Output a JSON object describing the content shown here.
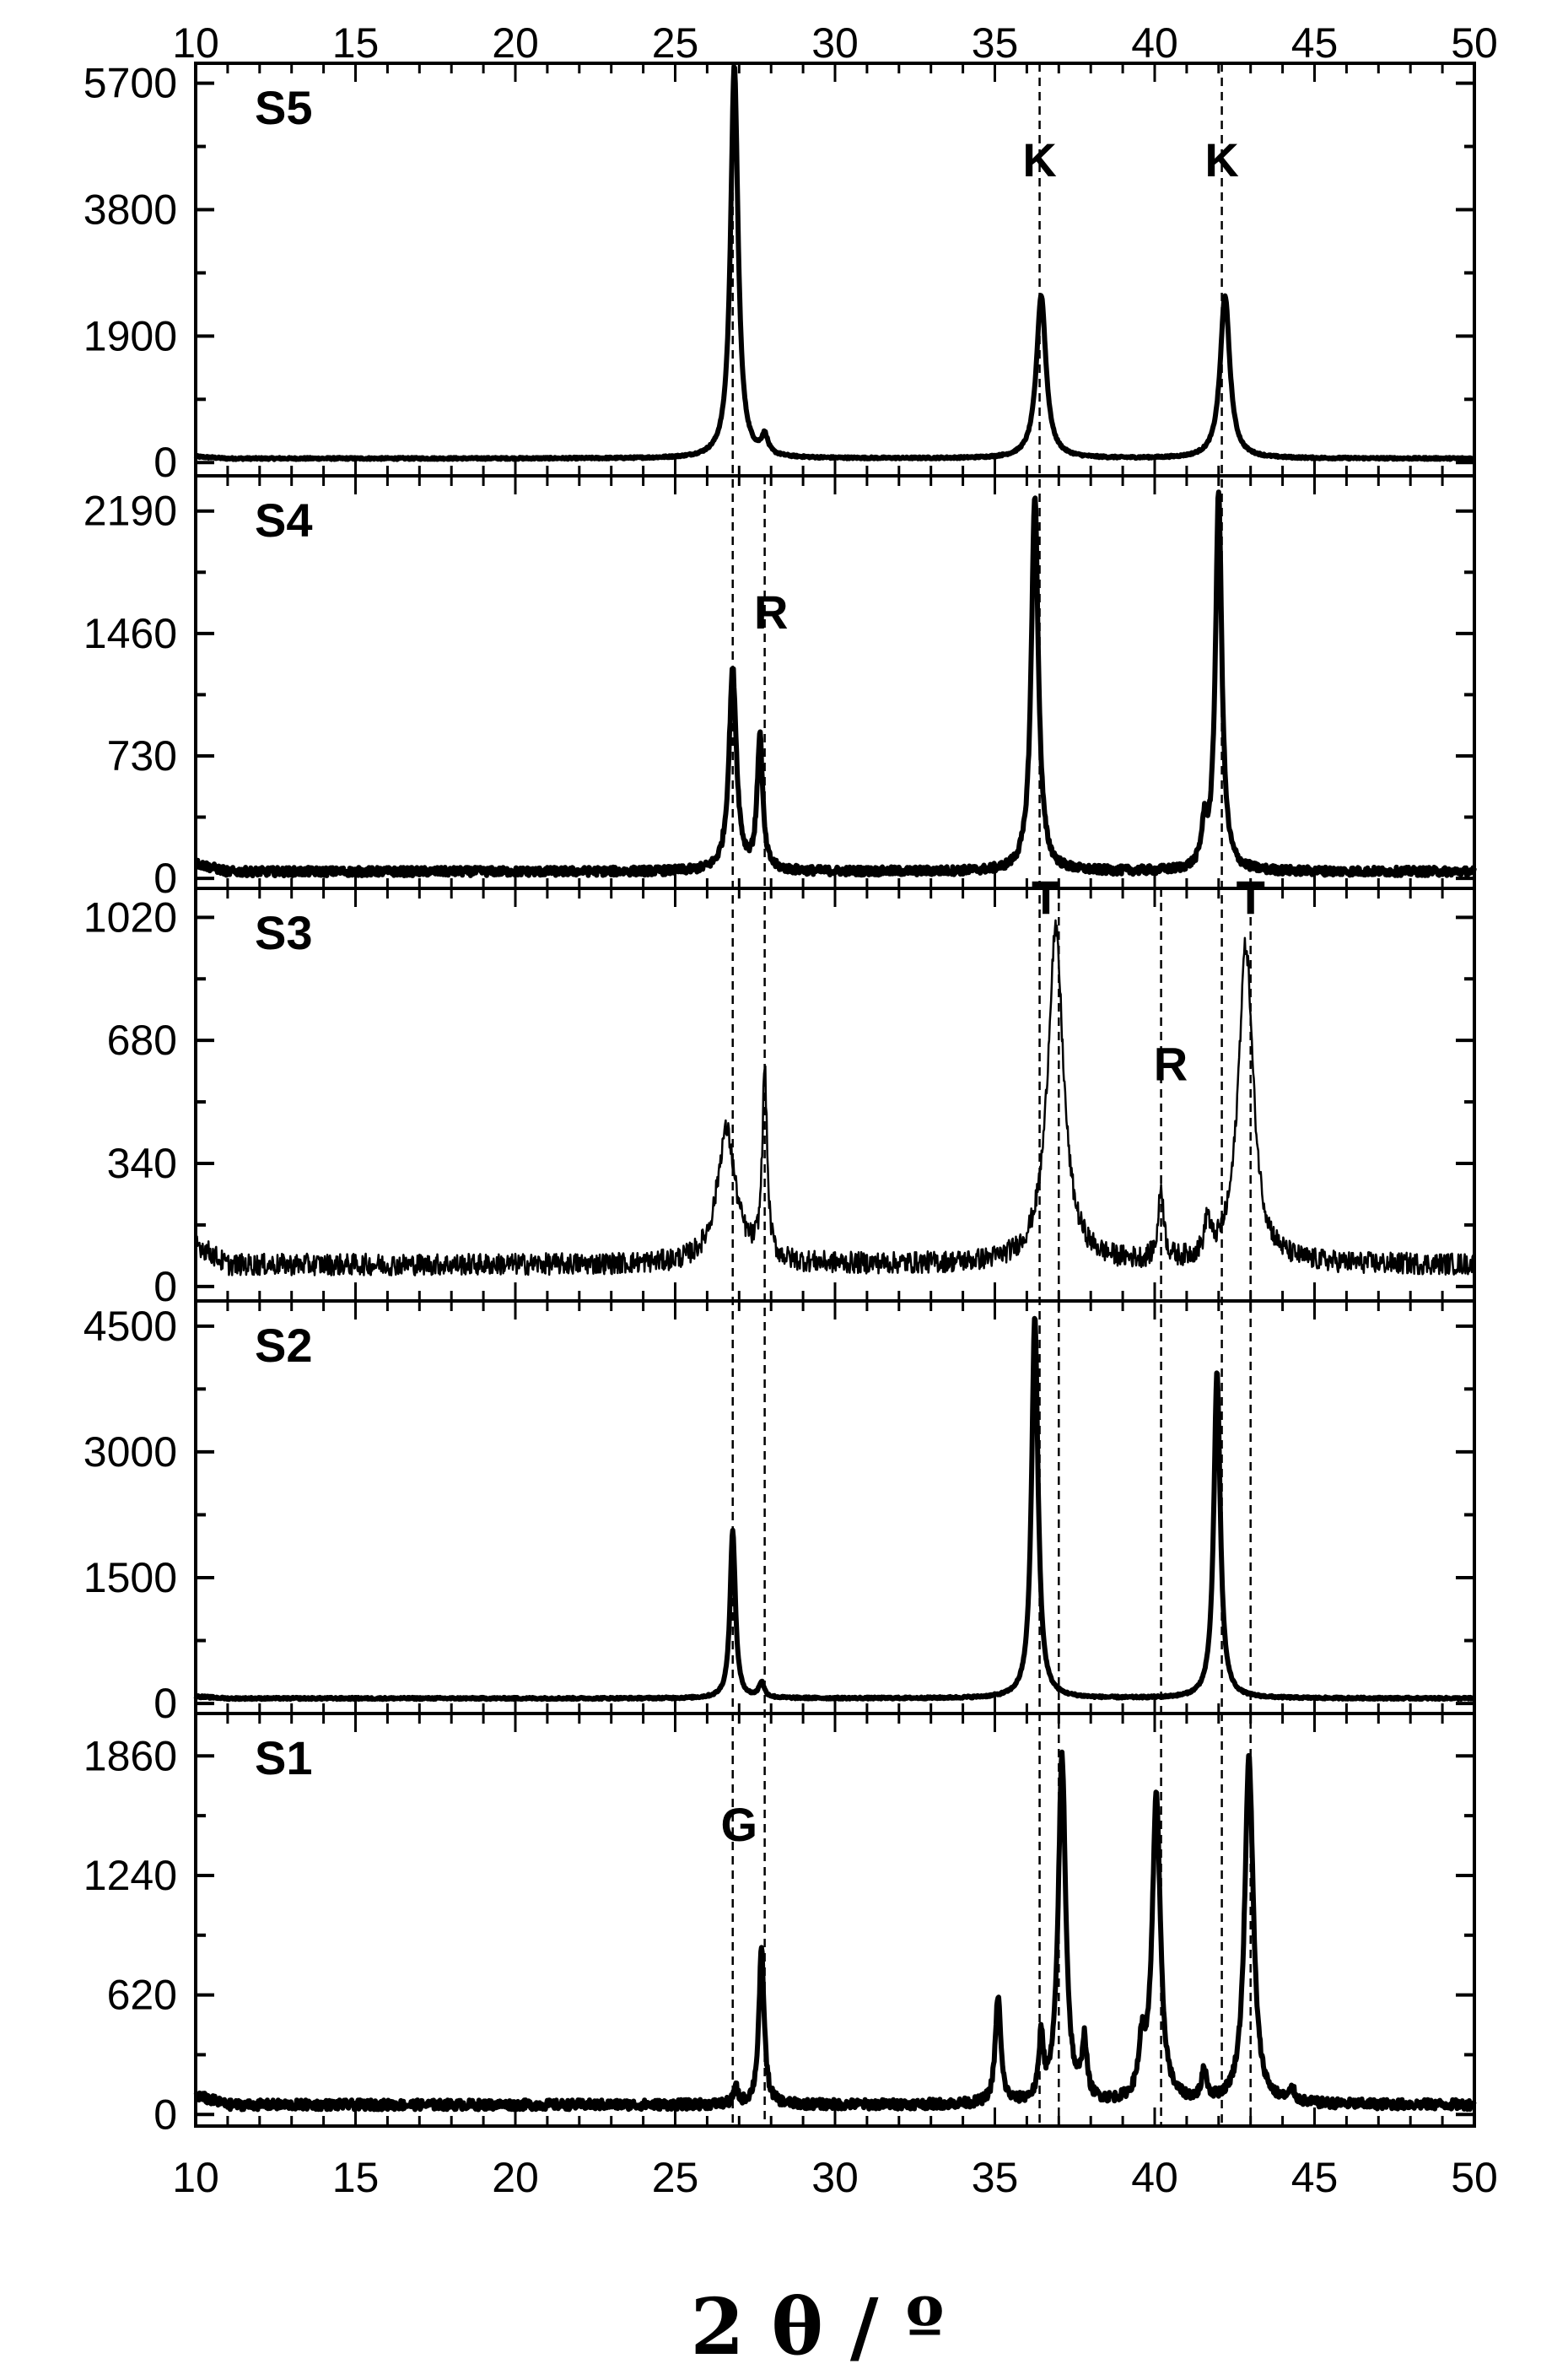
{
  "chart_data": {
    "type": "line",
    "layout": "stacked-panels",
    "xlabel": "2 θ / º",
    "xlim": [
      10,
      50
    ],
    "x_ticks": [
      10,
      15,
      20,
      25,
      30,
      35,
      40,
      45,
      50
    ],
    "grid": false,
    "legend": "none",
    "line_color": "#000000",
    "reference_lines": [
      {
        "x": 26.8,
        "panels": [
          "S5",
          "S4",
          "S3",
          "S2",
          "S1"
        ]
      },
      {
        "x": 27.8,
        "panels": [
          "S4",
          "S3",
          "S2",
          "S1"
        ]
      },
      {
        "x": 36.4,
        "panels": [
          "S5",
          "S4",
          "S3",
          "S2",
          "S1"
        ]
      },
      {
        "x": 37.0,
        "panels": [
          "S3",
          "S2",
          "S1"
        ]
      },
      {
        "x": 40.2,
        "panels": [
          "S3",
          "S2",
          "S1"
        ]
      },
      {
        "x": 42.1,
        "panels": [
          "S5",
          "S4",
          "S3",
          "S2",
          "S1"
        ]
      },
      {
        "x": 43.0,
        "panels": [
          "S3",
          "S2",
          "S1"
        ]
      }
    ],
    "panels": [
      {
        "label": "S5",
        "ylim": [
          -200,
          6000
        ],
        "y_ticks": [
          0,
          1900,
          3800,
          5700
        ],
        "baseline": 60,
        "noise": 15,
        "stroke_width": 6,
        "peaks": [
          {
            "x": 26.85,
            "y": 5900,
            "w": 0.14
          },
          {
            "x": 27.8,
            "y": 280,
            "w": 0.12
          },
          {
            "x": 36.45,
            "y": 2450,
            "w": 0.18
          },
          {
            "x": 42.2,
            "y": 2450,
            "w": 0.18
          }
        ],
        "annotations": [
          {
            "text": "K",
            "x": 36.4,
            "y": 4300
          },
          {
            "text": "K",
            "x": 42.1,
            "y": 4300
          }
        ]
      },
      {
        "label": "S4",
        "ylim": [
          -60,
          2400
        ],
        "y_ticks": [
          0,
          730,
          1460,
          2190
        ],
        "baseline": 40,
        "noise": 25,
        "stroke_width": 6,
        "peaks": [
          {
            "x": 26.8,
            "y": 1200,
            "w": 0.14
          },
          {
            "x": 27.65,
            "y": 800,
            "w": 0.1
          },
          {
            "x": 36.25,
            "y": 2250,
            "w": 0.13
          },
          {
            "x": 41.55,
            "y": 230,
            "w": 0.1
          },
          {
            "x": 42.0,
            "y": 2250,
            "w": 0.12
          }
        ],
        "annotations": [
          {
            "text": "R",
            "x": 28.0,
            "y": 1490
          }
        ]
      },
      {
        "label": "S3",
        "ylim": [
          -40,
          1100
        ],
        "y_ticks": [
          0,
          340,
          680,
          1020
        ],
        "baseline": 60,
        "noise": 30,
        "stroke_width": 2.5,
        "peaks": [
          {
            "x": 26.6,
            "y": 370,
            "w": 0.35
          },
          {
            "x": 27.8,
            "y": 520,
            "w": 0.09
          },
          {
            "x": 36.9,
            "y": 920,
            "w": 0.3
          },
          {
            "x": 40.2,
            "y": 200,
            "w": 0.1
          },
          {
            "x": 41.65,
            "y": 100,
            "w": 0.1
          },
          {
            "x": 42.85,
            "y": 880,
            "w": 0.28
          }
        ],
        "annotations": [
          {
            "text": "T",
            "x": 36.6,
            "y": 1030
          },
          {
            "text": "R",
            "x": 40.5,
            "y": 570
          },
          {
            "text": "T",
            "x": 43.0,
            "y": 1030
          }
        ]
      },
      {
        "label": "S2",
        "ylim": [
          -120,
          4800
        ],
        "y_ticks": [
          0,
          1500,
          3000,
          4500
        ],
        "baseline": 60,
        "noise": 12,
        "stroke_width": 6,
        "peaks": [
          {
            "x": 26.8,
            "y": 2000,
            "w": 0.1
          },
          {
            "x": 27.7,
            "y": 180,
            "w": 0.1
          },
          {
            "x": 36.25,
            "y": 4550,
            "w": 0.12
          },
          {
            "x": 41.95,
            "y": 3900,
            "w": 0.12
          }
        ],
        "annotations": []
      },
      {
        "label": "S1",
        "ylim": [
          -60,
          2080
        ],
        "y_ticks": [
          0,
          620,
          1240,
          1860
        ],
        "baseline": 50,
        "noise": 25,
        "stroke_width": 6,
        "peaks": [
          {
            "x": 26.9,
            "y": 80,
            "w": 0.08
          },
          {
            "x": 27.7,
            "y": 800,
            "w": 0.1
          },
          {
            "x": 35.1,
            "y": 560,
            "w": 0.1
          },
          {
            "x": 36.45,
            "y": 330,
            "w": 0.08
          },
          {
            "x": 37.1,
            "y": 1800,
            "w": 0.14
          },
          {
            "x": 37.8,
            "y": 300,
            "w": 0.09
          },
          {
            "x": 39.6,
            "y": 260,
            "w": 0.12
          },
          {
            "x": 40.05,
            "y": 1600,
            "w": 0.15
          },
          {
            "x": 41.55,
            "y": 150,
            "w": 0.1
          },
          {
            "x": 42.95,
            "y": 1800,
            "w": 0.16
          },
          {
            "x": 44.3,
            "y": 60,
            "w": 0.1
          }
        ],
        "annotations": [
          {
            "text": "G",
            "x": 27.0,
            "y": 1420
          }
        ]
      }
    ]
  }
}
